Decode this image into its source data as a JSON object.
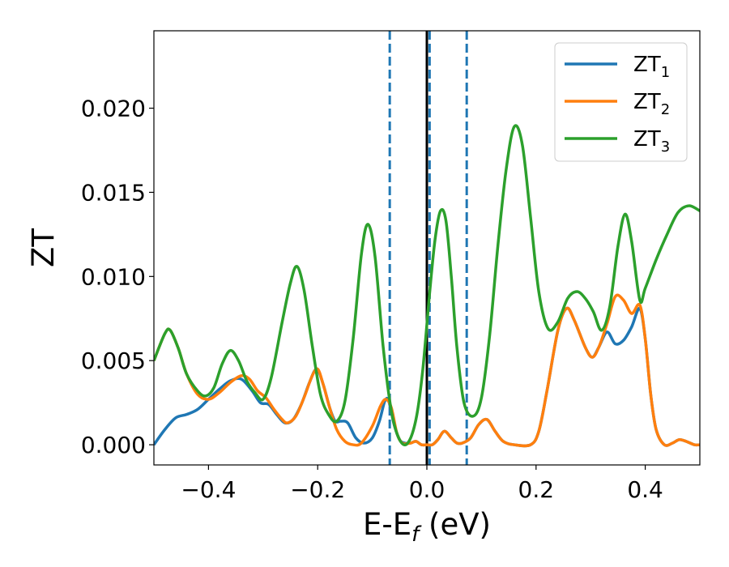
{
  "chart_data": {
    "type": "line",
    "title": "",
    "xlabel": "E-E",
    "xlabel_subscript": "f",
    "xlabel_unit": " (eV)",
    "ylabel": "ZT",
    "xlim": [
      -0.5,
      0.5
    ],
    "ylim": [
      -0.0012,
      0.0246
    ],
    "grid": false,
    "legend_position": "top-right",
    "x_ticks": [
      -0.4,
      -0.2,
      0.0,
      0.2,
      0.4
    ],
    "x_tick_labels": [
      "−0.4",
      "−0.2",
      "0.0",
      "0.2",
      "0.4"
    ],
    "y_ticks": [
      0.0,
      0.005,
      0.01,
      0.015,
      0.02
    ],
    "y_tick_labels": [
      "0.000",
      "0.005",
      "0.010",
      "0.015",
      "0.020"
    ],
    "vlines": [
      {
        "x": 0.0,
        "style": "solid",
        "color": "#000000"
      },
      {
        "x": -0.068,
        "style": "dashed",
        "color": "#1f77b4"
      },
      {
        "x": 0.005,
        "style": "dashed",
        "color": "#1f77b4"
      },
      {
        "x": 0.073,
        "style": "dashed",
        "color": "#1f77b4"
      }
    ],
    "series": [
      {
        "name": "ZT",
        "subscript": "1",
        "color": "#1f77b4",
        "points": [
          [
            -0.5,
            0.0
          ],
          [
            -0.48,
            0.0009
          ],
          [
            -0.46,
            0.0016
          ],
          [
            -0.44,
            0.0018
          ],
          [
            -0.42,
            0.0021
          ],
          [
            -0.4,
            0.0027
          ],
          [
            -0.38,
            0.0033
          ],
          [
            -0.36,
            0.0038
          ],
          [
            -0.34,
            0.0039
          ],
          [
            -0.32,
            0.0032
          ],
          [
            -0.305,
            0.0025
          ],
          [
            -0.29,
            0.0024
          ],
          [
            -0.275,
            0.0018
          ],
          [
            -0.26,
            0.0013
          ],
          [
            -0.245,
            0.0015
          ],
          [
            -0.23,
            0.0024
          ],
          [
            -0.215,
            0.0037
          ],
          [
            -0.202,
            0.0045
          ],
          [
            -0.19,
            0.0036
          ],
          [
            -0.178,
            0.0022
          ],
          [
            -0.168,
            0.0014
          ],
          [
            -0.158,
            0.0014
          ],
          [
            -0.145,
            0.0013
          ],
          [
            -0.13,
            0.0004
          ],
          [
            -0.115,
            0.0001
          ],
          [
            -0.1,
            0.0004
          ],
          [
            -0.087,
            0.0014
          ],
          [
            -0.077,
            0.0026
          ],
          [
            -0.07,
            0.0026
          ],
          [
            -0.06,
            0.0012
          ],
          [
            -0.05,
            0.0003
          ],
          [
            -0.04,
            0.0001
          ],
          [
            -0.03,
            0.0001
          ],
          [
            -0.02,
            0.0002
          ],
          [
            -0.01,
            0.0
          ],
          [
            0.0,
            0.0
          ],
          [
            0.01,
            0.0
          ],
          [
            0.02,
            0.0003
          ],
          [
            0.032,
            0.0008
          ],
          [
            0.045,
            0.0004
          ],
          [
            0.055,
            0.0001
          ],
          [
            0.065,
            0.0001
          ],
          [
            0.08,
            0.0004
          ],
          [
            0.095,
            0.0012
          ],
          [
            0.11,
            0.0015
          ],
          [
            0.125,
            0.0008
          ],
          [
            0.14,
            0.0002
          ],
          [
            0.16,
            0.0
          ],
          [
            0.19,
            0.0
          ],
          [
            0.205,
            0.0008
          ],
          [
            0.22,
            0.0032
          ],
          [
            0.24,
            0.0068
          ],
          [
            0.256,
            0.0081
          ],
          [
            0.27,
            0.0074
          ],
          [
            0.29,
            0.0058
          ],
          [
            0.303,
            0.0052
          ],
          [
            0.315,
            0.0058
          ],
          [
            0.33,
            0.0067
          ],
          [
            0.345,
            0.006
          ],
          [
            0.36,
            0.0062
          ],
          [
            0.375,
            0.007
          ],
          [
            0.39,
            0.0081
          ],
          [
            0.4,
            0.0063
          ],
          [
            0.41,
            0.003
          ],
          [
            0.42,
            0.0009
          ],
          [
            0.435,
            0.0
          ],
          [
            0.45,
            0.0001
          ],
          [
            0.462,
            0.0003
          ],
          [
            0.475,
            0.0002
          ],
          [
            0.49,
            0.0
          ],
          [
            0.5,
            0.0
          ]
        ]
      },
      {
        "name": "ZT",
        "subscript": "2",
        "color": "#ff7f0e",
        "points": [
          [
            -0.5,
            0.005
          ],
          [
            -0.48,
            0.0066
          ],
          [
            -0.47,
            0.0068
          ],
          [
            -0.455,
            0.0057
          ],
          [
            -0.44,
            0.0042
          ],
          [
            -0.42,
            0.003
          ],
          [
            -0.4,
            0.0027
          ],
          [
            -0.38,
            0.0031
          ],
          [
            -0.36,
            0.0037
          ],
          [
            -0.34,
            0.0041
          ],
          [
            -0.325,
            0.0039
          ],
          [
            -0.31,
            0.0032
          ],
          [
            -0.295,
            0.0028
          ],
          [
            -0.28,
            0.0021
          ],
          [
            -0.265,
            0.0015
          ],
          [
            -0.255,
            0.0013
          ],
          [
            -0.24,
            0.0017
          ],
          [
            -0.225,
            0.0028
          ],
          [
            -0.21,
            0.0041
          ],
          [
            -0.2,
            0.0045
          ],
          [
            -0.19,
            0.0036
          ],
          [
            -0.178,
            0.0022
          ],
          [
            -0.165,
            0.0009
          ],
          [
            -0.15,
            0.0002
          ],
          [
            -0.135,
            0.0
          ],
          [
            -0.12,
            0.0001
          ],
          [
            -0.1,
            0.0011
          ],
          [
            -0.085,
            0.0023
          ],
          [
            -0.075,
            0.0027
          ],
          [
            -0.065,
            0.0022
          ],
          [
            -0.055,
            0.0007
          ],
          [
            -0.045,
            0.0001
          ],
          [
            -0.03,
            0.0001
          ],
          [
            -0.02,
            0.0002
          ],
          [
            -0.01,
            0.0
          ],
          [
            0.0,
            0.0
          ],
          [
            0.01,
            0.0
          ],
          [
            0.02,
            0.0003
          ],
          [
            0.032,
            0.0008
          ],
          [
            0.045,
            0.0004
          ],
          [
            0.055,
            0.0001
          ],
          [
            0.065,
            0.0001
          ],
          [
            0.08,
            0.0004
          ],
          [
            0.095,
            0.0012
          ],
          [
            0.11,
            0.0015
          ],
          [
            0.125,
            0.0008
          ],
          [
            0.14,
            0.0002
          ],
          [
            0.16,
            0.0
          ],
          [
            0.19,
            0.0
          ],
          [
            0.205,
            0.0008
          ],
          [
            0.22,
            0.0032
          ],
          [
            0.24,
            0.0068
          ],
          [
            0.256,
            0.0081
          ],
          [
            0.27,
            0.0074
          ],
          [
            0.29,
            0.0058
          ],
          [
            0.303,
            0.0052
          ],
          [
            0.315,
            0.0058
          ],
          [
            0.33,
            0.0072
          ],
          [
            0.345,
            0.0088
          ],
          [
            0.36,
            0.0086
          ],
          [
            0.375,
            0.0078
          ],
          [
            0.39,
            0.0083
          ],
          [
            0.4,
            0.0063
          ],
          [
            0.41,
            0.003
          ],
          [
            0.42,
            0.0009
          ],
          [
            0.435,
            0.0
          ],
          [
            0.45,
            0.0001
          ],
          [
            0.462,
            0.0003
          ],
          [
            0.475,
            0.0002
          ],
          [
            0.49,
            0.0
          ],
          [
            0.5,
            0.0
          ]
        ]
      },
      {
        "name": "ZT",
        "subscript": "3",
        "color": "#2ca02c",
        "points": [
          [
            -0.5,
            0.005
          ],
          [
            -0.48,
            0.0066
          ],
          [
            -0.47,
            0.0068
          ],
          [
            -0.455,
            0.0057
          ],
          [
            -0.44,
            0.0042
          ],
          [
            -0.42,
            0.0032
          ],
          [
            -0.405,
            0.0029
          ],
          [
            -0.39,
            0.0034
          ],
          [
            -0.375,
            0.0048
          ],
          [
            -0.36,
            0.0056
          ],
          [
            -0.345,
            0.005
          ],
          [
            -0.33,
            0.0038
          ],
          [
            -0.315,
            0.0031
          ],
          [
            -0.3,
            0.0027
          ],
          [
            -0.285,
            0.004
          ],
          [
            -0.265,
            0.0073
          ],
          [
            -0.25,
            0.0096
          ],
          [
            -0.238,
            0.0106
          ],
          [
            -0.225,
            0.0092
          ],
          [
            -0.21,
            0.0059
          ],
          [
            -0.195,
            0.003
          ],
          [
            -0.18,
            0.0018
          ],
          [
            -0.165,
            0.0014
          ],
          [
            -0.15,
            0.0026
          ],
          [
            -0.135,
            0.0063
          ],
          [
            -0.12,
            0.0113
          ],
          [
            -0.108,
            0.0131
          ],
          [
            -0.095,
            0.0112
          ],
          [
            -0.08,
            0.0058
          ],
          [
            -0.065,
            0.002
          ],
          [
            -0.05,
            0.0003
          ],
          [
            -0.035,
            0.0001
          ],
          [
            -0.02,
            0.0015
          ],
          [
            -0.008,
            0.0043
          ],
          [
            0.005,
            0.009
          ],
          [
            0.015,
            0.0122
          ],
          [
            0.025,
            0.0139
          ],
          [
            0.035,
            0.0133
          ],
          [
            0.045,
            0.0099
          ],
          [
            0.055,
            0.0058
          ],
          [
            0.068,
            0.0025
          ],
          [
            0.085,
            0.0017
          ],
          [
            0.1,
            0.0028
          ],
          [
            0.115,
            0.0065
          ],
          [
            0.13,
            0.0118
          ],
          [
            0.145,
            0.0163
          ],
          [
            0.16,
            0.0189
          ],
          [
            0.175,
            0.0178
          ],
          [
            0.19,
            0.0135
          ],
          [
            0.205,
            0.0091
          ],
          [
            0.222,
            0.0069
          ],
          [
            0.24,
            0.0073
          ],
          [
            0.258,
            0.0087
          ],
          [
            0.275,
            0.0091
          ],
          [
            0.29,
            0.0087
          ],
          [
            0.305,
            0.0079
          ],
          [
            0.32,
            0.0068
          ],
          [
            0.335,
            0.0082
          ],
          [
            0.35,
            0.0118
          ],
          [
            0.363,
            0.0137
          ],
          [
            0.375,
            0.0121
          ],
          [
            0.39,
            0.0086
          ],
          [
            0.4,
            0.0093
          ],
          [
            0.42,
            0.011
          ],
          [
            0.44,
            0.0125
          ],
          [
            0.46,
            0.0138
          ],
          [
            0.48,
            0.0142
          ],
          [
            0.5,
            0.0139
          ]
        ]
      }
    ]
  }
}
